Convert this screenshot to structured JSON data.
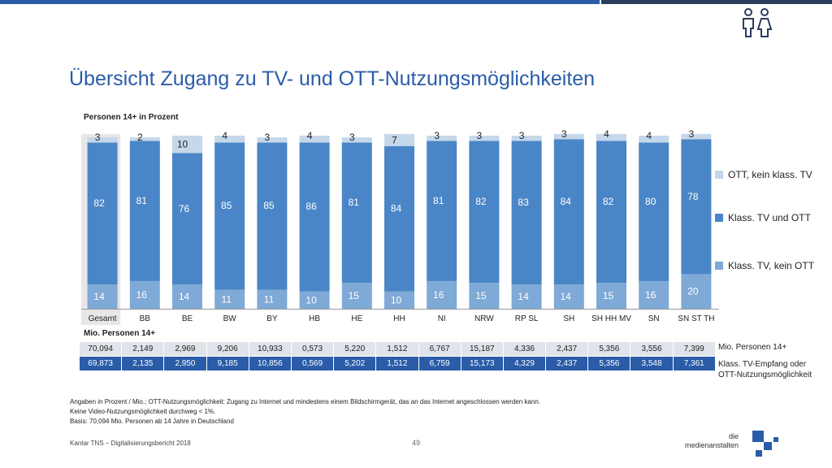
{
  "header": {
    "title": "Übersicht Zugang zu TV- und OTT-Nutzungsmöglichkeiten",
    "subtitle": "Personen 14+ in Prozent"
  },
  "colors": {
    "ott": "#c5d7ea",
    "tv_ott": "#4a86c7",
    "tv_only": "#7fa9d6",
    "accent": "#2a5ca8",
    "highlight_bg": "#e7e7e7"
  },
  "chart_data": {
    "type": "bar",
    "stacked": true,
    "categories": [
      "Gesamt",
      "BB",
      "BE",
      "BW",
      "BY",
      "HB",
      "HE",
      "HH",
      "NI",
      "NRW",
      "RP SL",
      "SH",
      "SH HH MV",
      "SN",
      "SN ST TH"
    ],
    "series": [
      {
        "name": "Klass. TV, kein OTT",
        "values": [
          14,
          16,
          14,
          11,
          11,
          10,
          15,
          10,
          16,
          15,
          14,
          14,
          15,
          16,
          20
        ]
      },
      {
        "name": "Klass. TV und OTT",
        "values": [
          82,
          81,
          76,
          85,
          85,
          86,
          81,
          84,
          81,
          82,
          83,
          84,
          82,
          80,
          78
        ]
      },
      {
        "name": "OTT, kein klass. TV",
        "values": [
          3,
          2,
          10,
          4,
          3,
          4,
          3,
          7,
          3,
          3,
          3,
          3,
          4,
          4,
          3
        ]
      }
    ],
    "ylim": [
      0,
      100
    ],
    "legend_position": "right",
    "highlight_category": "Gesamt"
  },
  "table": {
    "label": "Mio. Personen 14+",
    "row1_label": "Mio.  Personen 14+",
    "row2_label": [
      "Klass. TV-Empfang oder",
      "OTT-Nutzungsmöglichkeit"
    ],
    "row1": [
      "70,094",
      "2,149",
      "2,969",
      "9,206",
      "10,933",
      "0,573",
      "5,220",
      "1,512",
      "6,767",
      "15,187",
      "4,336",
      "2,437",
      "5,356",
      "3,556",
      "7,399"
    ],
    "row2": [
      "69,873",
      "2,135",
      "2,950",
      "9,185",
      "10,856",
      "0,569",
      "5,202",
      "1,512",
      "6,759",
      "15,173",
      "4,329",
      "2,437",
      "5,356",
      "3,548",
      "7,361"
    ]
  },
  "notes": [
    "Angaben in Prozent / Mio.; OTT-Nutzungsmöglichkeit: Zugang zu Internet und mindestens einem Bildschirmgerät, das an das Internet angeschlossen werden kann.",
    "Keine Video-Nutzungsmöglichkeit durchweg < 1%.",
    "Basis: 70,094 Mio. Personen ab 14 Jahre in Deutschland"
  ],
  "footer": {
    "source": "Kantar TNS – Digitalisierungsbericht 2018",
    "page": "49",
    "brand_line1": "die",
    "brand_line2": "medienanstalten"
  },
  "icons": {
    "people": "people-icon",
    "logo": "medienanstalten-logo"
  }
}
